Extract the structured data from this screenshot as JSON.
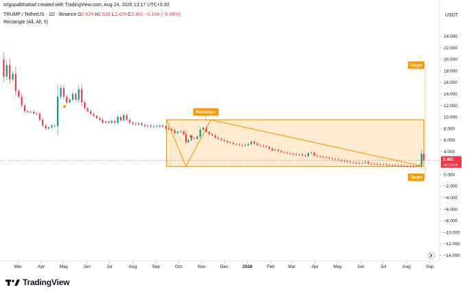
{
  "credit": "srigopalbhattad created with TradingView.com, Aug 24, 2026 13:17 UTC+5:30",
  "symbol": {
    "name": "TRUMP / TetherUS · 1D · Binance",
    "o_label": "O",
    "o": "2.624",
    "h_label": "H",
    "h": "2.636",
    "l_label": "L",
    "l": "2.429",
    "c_label": "C",
    "c": "2.481",
    "change": "−0.144 (−5.49%)"
  },
  "indicator": "Rectangle (All, All, 5)",
  "currency": "USDT",
  "brand": "TradingView",
  "colors": {
    "up": "#089981",
    "down": "#f23645",
    "pattern": "#ff9800",
    "pattern_fill": "#ffe0b2",
    "marker": "#f23645"
  },
  "chart_data": {
    "type": "line",
    "title": "TRUMP / TetherUS · 1D · Binance",
    "ylim": [
      -15,
      26
    ],
    "y_ticks": [
      "24.000",
      "22.000",
      "20.000",
      "18.000",
      "16.000",
      "14.000",
      "12.000",
      "10.000",
      "8.000",
      "6.000",
      "4.000",
      "2.000",
      "0.000",
      "−2.000",
      "−4.000",
      "−6.000",
      "−8.000",
      "−10.000",
      "−12.000",
      "−14.000"
    ],
    "y_tick_values": [
      24,
      22,
      20,
      18,
      16,
      14,
      12,
      10,
      8,
      6,
      4,
      2,
      0,
      -2,
      -4,
      -6,
      -8,
      -10,
      -12,
      -14
    ],
    "x_ticks": [
      "Mar",
      "Apr",
      "May",
      "Jun",
      "Jul",
      "Aug",
      "Sep",
      "Oct",
      "Nov",
      "Dec",
      "2026",
      "Feb",
      "Mar",
      "Apr",
      "May",
      "Jun",
      "Jul",
      "Aug",
      "Sep"
    ],
    "x_tick_dates": [
      "2025-03-01",
      "2025-04-01",
      "2025-05-01",
      "2025-06-01",
      "2025-07-01",
      "2025-08-01",
      "2025-09-01",
      "2025-10-01",
      "2025-11-01",
      "2025-12-01",
      "2026-01-01",
      "2026-02-01",
      "2026-03-01",
      "2026-04-01",
      "2026-05-01",
      "2026-06-01",
      "2026-07-01",
      "2026-08-01",
      "2026-09-01"
    ],
    "x_range": [
      "2025-02-05",
      "2026-09-14"
    ],
    "series": [
      {
        "values": [
          [
            "2025-02-06",
            20.0
          ],
          [
            "2025-02-10",
            17.0
          ],
          [
            "2025-02-14",
            19.0
          ],
          [
            "2025-02-18",
            16.5
          ],
          [
            "2025-02-22",
            17.5
          ],
          [
            "2025-02-26",
            14.5
          ],
          [
            "2025-03-02",
            13.5
          ],
          [
            "2025-03-06",
            12.0
          ],
          [
            "2025-03-10",
            11.0
          ],
          [
            "2025-03-14",
            10.8
          ],
          [
            "2025-03-18",
            10.9
          ],
          [
            "2025-03-22",
            10.6
          ],
          [
            "2025-03-26",
            10.5
          ],
          [
            "2025-03-30",
            9.5
          ],
          [
            "2025-04-03",
            8.5
          ],
          [
            "2025-04-07",
            8.0
          ],
          [
            "2025-04-11",
            8.2
          ],
          [
            "2025-04-15",
            8.5
          ],
          [
            "2025-04-19",
            8.4
          ],
          [
            "2025-04-23",
            13.5
          ],
          [
            "2025-04-27",
            15.0
          ],
          [
            "2025-05-01",
            13.5
          ],
          [
            "2025-05-05",
            12.5
          ],
          [
            "2025-05-09",
            13.0
          ],
          [
            "2025-05-13",
            14.0
          ],
          [
            "2025-05-17",
            13.0
          ],
          [
            "2025-05-21",
            14.8
          ],
          [
            "2025-05-25",
            12.5
          ],
          [
            "2025-05-29",
            11.5
          ],
          [
            "2025-06-02",
            11.0
          ],
          [
            "2025-06-06",
            10.5
          ],
          [
            "2025-06-10",
            10.2
          ],
          [
            "2025-06-14",
            9.8
          ],
          [
            "2025-06-18",
            9.5
          ],
          [
            "2025-06-22",
            9.0
          ],
          [
            "2025-06-26",
            9.2
          ],
          [
            "2025-06-30",
            9.0
          ],
          [
            "2025-07-04",
            9.3
          ],
          [
            "2025-07-08",
            9.0
          ],
          [
            "2025-07-12",
            10.0
          ],
          [
            "2025-07-16",
            9.4
          ],
          [
            "2025-07-20",
            10.3
          ],
          [
            "2025-07-24",
            9.5
          ],
          [
            "2025-07-28",
            9.0
          ],
          [
            "2025-08-01",
            8.8
          ],
          [
            "2025-08-05",
            8.7
          ],
          [
            "2025-08-09",
            8.9
          ],
          [
            "2025-08-13",
            8.6
          ],
          [
            "2025-08-17",
            8.4
          ],
          [
            "2025-08-21",
            8.5
          ],
          [
            "2025-08-25",
            8.3
          ],
          [
            "2025-08-29",
            8.4
          ],
          [
            "2025-09-02",
            8.3
          ],
          [
            "2025-09-06",
            8.5
          ],
          [
            "2025-09-10",
            8.3
          ],
          [
            "2025-09-14",
            8.0
          ],
          [
            "2025-09-18",
            7.9
          ],
          [
            "2025-09-22",
            7.7
          ],
          [
            "2025-09-26",
            7.2
          ],
          [
            "2025-09-30",
            7.4
          ],
          [
            "2025-10-04",
            7.5
          ],
          [
            "2025-10-08",
            7.0
          ],
          [
            "2025-10-11",
            5.6
          ],
          [
            "2025-10-14",
            6.0
          ],
          [
            "2025-10-18",
            6.3
          ],
          [
            "2025-10-22",
            6.2
          ],
          [
            "2025-10-26",
            6.6
          ],
          [
            "2025-10-30",
            7.8
          ],
          [
            "2025-11-03",
            8.1
          ],
          [
            "2025-11-07",
            7.4
          ],
          [
            "2025-11-11",
            7.0
          ],
          [
            "2025-11-15",
            6.8
          ],
          [
            "2025-11-19",
            6.4
          ],
          [
            "2025-11-23",
            6.2
          ],
          [
            "2025-11-27",
            6.0
          ],
          [
            "2025-12-01",
            5.8
          ],
          [
            "2025-12-05",
            5.6
          ],
          [
            "2025-12-09",
            5.5
          ],
          [
            "2025-12-13",
            5.3
          ],
          [
            "2025-12-17",
            5.2
          ],
          [
            "2025-12-21",
            5.1
          ],
          [
            "2025-12-25",
            5.0
          ],
          [
            "2025-12-29",
            5.1
          ],
          [
            "2026-01-02",
            5.3
          ],
          [
            "2026-01-06",
            5.7
          ],
          [
            "2026-01-10",
            5.4
          ],
          [
            "2026-01-14",
            5.1
          ],
          [
            "2026-01-18",
            5.0
          ],
          [
            "2026-01-22",
            4.9
          ],
          [
            "2026-01-26",
            4.8
          ],
          [
            "2026-01-30",
            4.5
          ],
          [
            "2026-02-03",
            4.2
          ],
          [
            "2026-02-07",
            4.3
          ],
          [
            "2026-02-11",
            4.1
          ],
          [
            "2026-02-15",
            3.9
          ],
          [
            "2026-02-19",
            3.8
          ],
          [
            "2026-02-23",
            3.7
          ],
          [
            "2026-02-27",
            3.6
          ],
          [
            "2026-03-03",
            3.5
          ],
          [
            "2026-03-07",
            3.4
          ],
          [
            "2026-03-11",
            3.5
          ],
          [
            "2026-03-15",
            3.3
          ],
          [
            "2026-03-19",
            3.2
          ],
          [
            "2026-03-23",
            3.7
          ],
          [
            "2026-03-27",
            3.8
          ],
          [
            "2026-03-31",
            3.3
          ],
          [
            "2026-04-04",
            3.2
          ],
          [
            "2026-04-08",
            3.1
          ],
          [
            "2026-04-12",
            3.0
          ],
          [
            "2026-04-16",
            2.9
          ],
          [
            "2026-04-20",
            2.8
          ],
          [
            "2026-04-24",
            2.7
          ],
          [
            "2026-04-28",
            2.6
          ],
          [
            "2026-05-02",
            2.5
          ],
          [
            "2026-05-06",
            2.4
          ],
          [
            "2026-05-10",
            2.3
          ],
          [
            "2026-05-14",
            2.2
          ],
          [
            "2026-05-18",
            2.1
          ],
          [
            "2026-05-22",
            2.05
          ],
          [
            "2026-05-26",
            2.0
          ],
          [
            "2026-05-30",
            1.95
          ],
          [
            "2026-06-03",
            2.05
          ],
          [
            "2026-06-07",
            2.2
          ],
          [
            "2026-06-11",
            1.9
          ],
          [
            "2026-06-15",
            1.85
          ],
          [
            "2026-06-19",
            1.8
          ],
          [
            "2026-06-23",
            1.75
          ],
          [
            "2026-06-27",
            1.7
          ],
          [
            "2026-07-01",
            1.75
          ],
          [
            "2026-07-05",
            1.65
          ],
          [
            "2026-07-09",
            1.6
          ],
          [
            "2026-07-13",
            1.62
          ],
          [
            "2026-07-17",
            1.58
          ],
          [
            "2026-07-21",
            1.55
          ],
          [
            "2026-07-25",
            1.5
          ],
          [
            "2026-07-29",
            1.48
          ],
          [
            "2026-08-02",
            1.45
          ],
          [
            "2026-08-06",
            1.42
          ],
          [
            "2026-08-10",
            1.4
          ],
          [
            "2026-08-14",
            1.5
          ],
          [
            "2026-08-18",
            1.6
          ],
          [
            "2026-08-21",
            3.6
          ],
          [
            "2026-08-24",
            2.481
          ]
        ]
      }
    ],
    "rectangle": {
      "from": "2025-09-15",
      "to": "2026-08-24",
      "top": 9.5,
      "bottom": 1.4,
      "label": "Rectangle"
    },
    "triangle": [
      [
        "2025-09-15",
        9.5
      ],
      [
        "2025-10-11",
        1.4
      ],
      [
        "2025-11-13",
        9.5
      ],
      [
        "2026-08-24",
        1.4
      ]
    ],
    "targets": [
      {
        "label": "Target",
        "from": 2.8,
        "to": 18.5,
        "date": "2026-08-24"
      },
      {
        "label": "Target",
        "from": 1.4,
        "to": 0.0,
        "date": "2026-08-24"
      }
    ],
    "last_price": {
      "value": "2.481",
      "countdown": "16:12:24",
      "y": 2.481
    },
    "markers": [
      {
        "date": "2025-05-02",
        "y": 11.8,
        "color": "orange"
      },
      {
        "date": "2025-10-18",
        "y": 6.6,
        "color": "red"
      }
    ]
  }
}
